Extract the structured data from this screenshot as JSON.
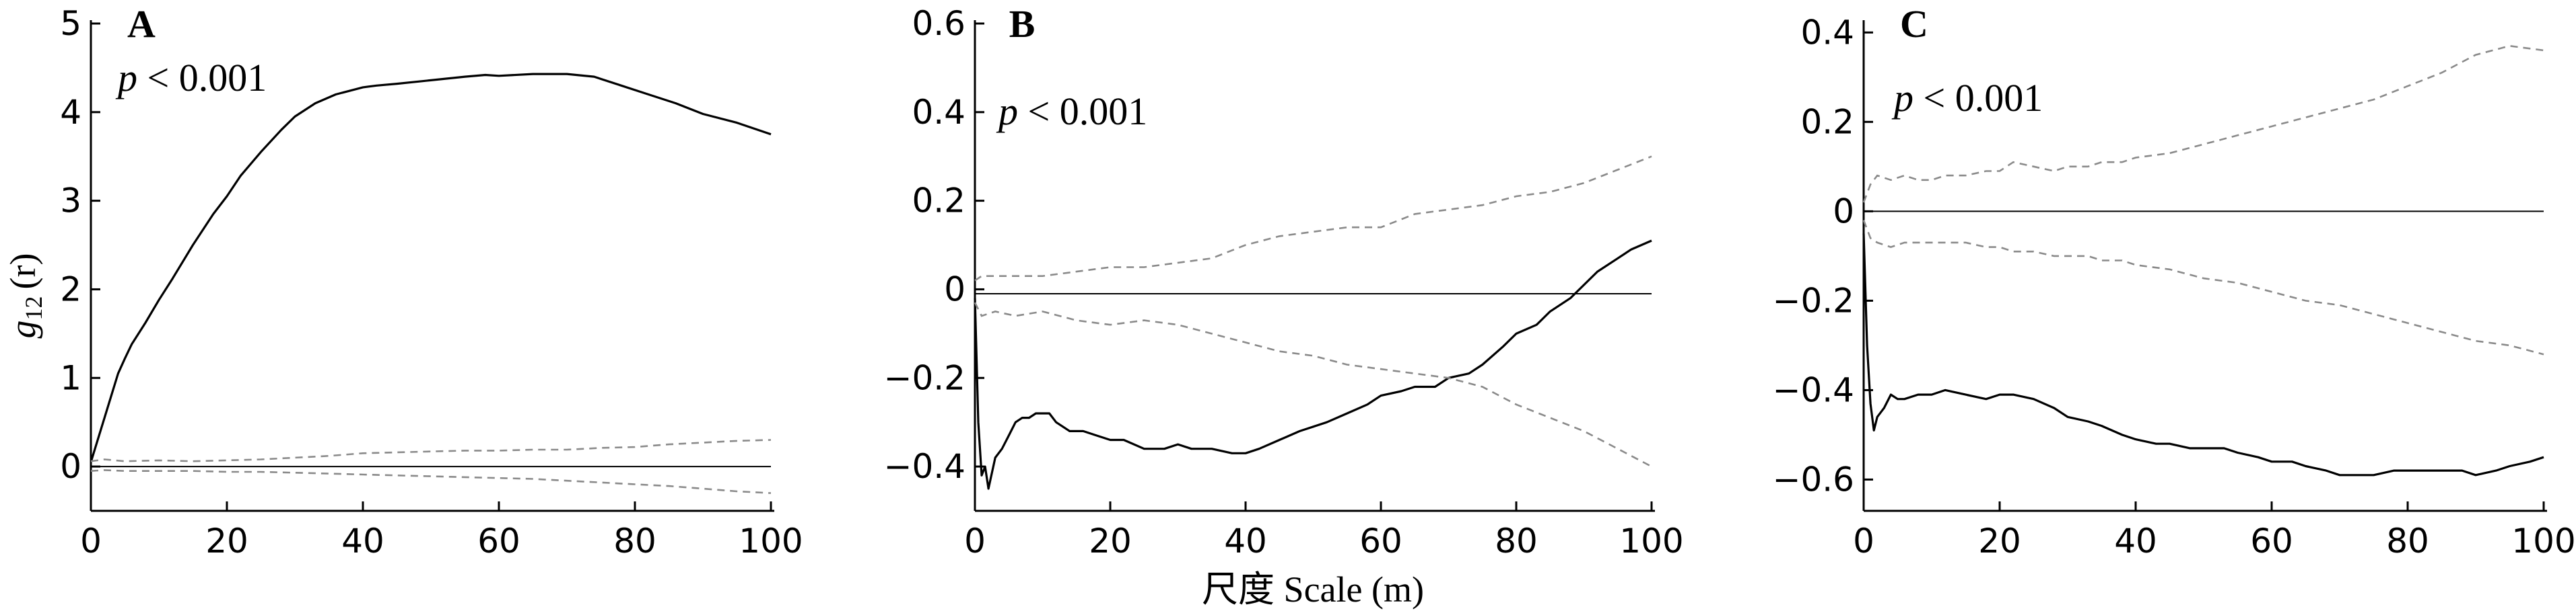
{
  "figure": {
    "ylabel_main": "g",
    "ylabel_sub": "12",
    "ylabel_rest": "(r)",
    "xlabel": "尺度 Scale (m)"
  },
  "chart_data": [
    {
      "type": "line",
      "panel": "A",
      "annotation": "p < 0.001",
      "xlim": [
        0,
        100
      ],
      "ylim": [
        -0.5,
        5
      ],
      "xticks": [
        0,
        20,
        40,
        60,
        80,
        100
      ],
      "yticks": [
        0,
        1,
        2,
        3,
        4,
        5
      ],
      "reference_line": 0,
      "series": [
        {
          "role": "observed",
          "x": [
            0,
            1,
            2,
            3,
            4,
            5,
            6,
            8,
            10,
            12,
            15,
            18,
            20,
            22,
            25,
            28,
            30,
            33,
            36,
            40,
            42,
            45,
            50,
            55,
            58,
            60,
            65,
            70,
            74,
            78,
            82,
            86,
            90,
            95,
            100
          ],
          "y": [
            0.05,
            0.3,
            0.55,
            0.8,
            1.05,
            1.22,
            1.38,
            1.62,
            1.88,
            2.12,
            2.5,
            2.85,
            3.05,
            3.28,
            3.55,
            3.8,
            3.95,
            4.1,
            4.2,
            4.28,
            4.3,
            4.32,
            4.36,
            4.4,
            4.42,
            4.41,
            4.43,
            4.43,
            4.4,
            4.3,
            4.2,
            4.1,
            3.98,
            3.88,
            3.75
          ]
        },
        {
          "role": "envelope-upper",
          "x": [
            0,
            2,
            5,
            10,
            15,
            20,
            25,
            30,
            35,
            40,
            45,
            50,
            55,
            60,
            65,
            70,
            75,
            80,
            85,
            90,
            95,
            100
          ],
          "y": [
            0.06,
            0.08,
            0.06,
            0.07,
            0.06,
            0.07,
            0.08,
            0.1,
            0.12,
            0.15,
            0.16,
            0.17,
            0.18,
            0.18,
            0.19,
            0.19,
            0.21,
            0.22,
            0.25,
            0.27,
            0.29,
            0.3
          ]
        },
        {
          "role": "envelope-lower",
          "x": [
            0,
            2,
            5,
            10,
            15,
            20,
            25,
            30,
            35,
            40,
            45,
            50,
            55,
            60,
            65,
            70,
            75,
            80,
            85,
            90,
            95,
            100
          ],
          "y": [
            -0.05,
            -0.04,
            -0.05,
            -0.05,
            -0.05,
            -0.06,
            -0.06,
            -0.07,
            -0.08,
            -0.09,
            -0.1,
            -0.11,
            -0.12,
            -0.13,
            -0.14,
            -0.16,
            -0.18,
            -0.2,
            -0.22,
            -0.25,
            -0.28,
            -0.3
          ]
        }
      ]
    },
    {
      "type": "line",
      "panel": "B",
      "annotation": "p < 0.001",
      "xlim": [
        0,
        100
      ],
      "ylim": [
        -0.5,
        0.6
      ],
      "xticks": [
        0,
        20,
        40,
        60,
        80,
        100
      ],
      "yticks": [
        -0.4,
        -0.2,
        0,
        0.2,
        0.4,
        0.6
      ],
      "ytick_labels": [
        "−0.4",
        "−0.2",
        "0",
        "0.2",
        "0.4",
        "0.6"
      ],
      "reference_line": -0.01,
      "series": [
        {
          "role": "observed",
          "x": [
            0,
            0.5,
            1,
            1.5,
            2,
            3,
            4,
            5,
            6,
            7,
            8,
            9,
            10,
            11,
            12,
            14,
            16,
            18,
            20,
            22,
            25,
            28,
            30,
            32,
            35,
            38,
            40,
            42,
            45,
            48,
            50,
            52,
            55,
            58,
            60,
            63,
            65,
            68,
            70,
            73,
            75,
            78,
            80,
            83,
            85,
            88,
            90,
            92,
            95,
            97,
            100
          ],
          "y": [
            -0.02,
            -0.3,
            -0.42,
            -0.4,
            -0.45,
            -0.38,
            -0.36,
            -0.33,
            -0.3,
            -0.29,
            -0.29,
            -0.28,
            -0.28,
            -0.28,
            -0.3,
            -0.32,
            -0.32,
            -0.33,
            -0.34,
            -0.34,
            -0.36,
            -0.36,
            -0.35,
            -0.36,
            -0.36,
            -0.37,
            -0.37,
            -0.36,
            -0.34,
            -0.32,
            -0.31,
            -0.3,
            -0.28,
            -0.26,
            -0.24,
            -0.23,
            -0.22,
            -0.22,
            -0.2,
            -0.19,
            -0.17,
            -0.13,
            -0.1,
            -0.08,
            -0.05,
            -0.02,
            0.01,
            0.04,
            0.07,
            0.09,
            0.11
          ]
        },
        {
          "role": "envelope-upper",
          "x": [
            0,
            1,
            3,
            6,
            10,
            15,
            20,
            25,
            30,
            35,
            40,
            45,
            50,
            55,
            60,
            65,
            70,
            75,
            80,
            85,
            90,
            95,
            100
          ],
          "y": [
            0.02,
            0.03,
            0.03,
            0.03,
            0.03,
            0.04,
            0.05,
            0.05,
            0.06,
            0.07,
            0.1,
            0.12,
            0.13,
            0.14,
            0.14,
            0.17,
            0.18,
            0.19,
            0.21,
            0.22,
            0.24,
            0.27,
            0.3
          ]
        },
        {
          "role": "envelope-lower",
          "x": [
            0,
            1,
            3,
            6,
            10,
            15,
            20,
            25,
            30,
            35,
            40,
            45,
            50,
            55,
            60,
            65,
            70,
            75,
            80,
            85,
            90,
            95,
            100
          ],
          "y": [
            -0.03,
            -0.06,
            -0.05,
            -0.06,
            -0.05,
            -0.07,
            -0.08,
            -0.07,
            -0.08,
            -0.1,
            -0.12,
            -0.14,
            -0.15,
            -0.17,
            -0.18,
            -0.19,
            -0.2,
            -0.22,
            -0.26,
            -0.29,
            -0.32,
            -0.36,
            -0.4
          ]
        }
      ]
    },
    {
      "type": "line",
      "panel": "C",
      "annotation": "p < 0.001",
      "xlim": [
        0,
        100
      ],
      "ylim": [
        -0.67,
        0.42
      ],
      "xticks": [
        0,
        20,
        40,
        60,
        80,
        100
      ],
      "yticks": [
        -0.6,
        -0.4,
        -0.2,
        0,
        0.2,
        0.4
      ],
      "ytick_labels": [
        "−0.6",
        "−0.4",
        "−0.2",
        "0",
        "0.2",
        "0.4"
      ],
      "reference_line": 0,
      "series": [
        {
          "role": "observed",
          "x": [
            0,
            0.5,
            1,
            1.5,
            2,
            3,
            4,
            5,
            6,
            8,
            10,
            12,
            15,
            18,
            20,
            22,
            25,
            28,
            30,
            33,
            35,
            38,
            40,
            43,
            45,
            48,
            50,
            53,
            55,
            58,
            60,
            63,
            65,
            68,
            70,
            73,
            75,
            78,
            80,
            83,
            85,
            88,
            90,
            93,
            95,
            98,
            100
          ],
          "y": [
            -0.05,
            -0.3,
            -0.43,
            -0.49,
            -0.46,
            -0.44,
            -0.41,
            -0.42,
            -0.42,
            -0.41,
            -0.41,
            -0.4,
            -0.41,
            -0.42,
            -0.41,
            -0.41,
            -0.42,
            -0.44,
            -0.46,
            -0.47,
            -0.48,
            -0.5,
            -0.51,
            -0.52,
            -0.52,
            -0.53,
            -0.53,
            -0.53,
            -0.54,
            -0.55,
            -0.56,
            -0.56,
            -0.57,
            -0.58,
            -0.59,
            -0.59,
            -0.59,
            -0.58,
            -0.58,
            -0.58,
            -0.58,
            -0.58,
            -0.59,
            -0.58,
            -0.57,
            -0.56,
            -0.55
          ]
        },
        {
          "role": "envelope-upper",
          "x": [
            0,
            1,
            2,
            4,
            6,
            8,
            10,
            12,
            15,
            18,
            20,
            22,
            25,
            28,
            30,
            33,
            35,
            38,
            40,
            45,
            50,
            55,
            60,
            65,
            70,
            75,
            80,
            85,
            90,
            95,
            100
          ],
          "y": [
            0.02,
            0.06,
            0.08,
            0.07,
            0.08,
            0.07,
            0.07,
            0.08,
            0.08,
            0.09,
            0.09,
            0.11,
            0.1,
            0.09,
            0.1,
            0.1,
            0.11,
            0.11,
            0.12,
            0.13,
            0.15,
            0.17,
            0.19,
            0.21,
            0.23,
            0.25,
            0.28,
            0.31,
            0.35,
            0.37,
            0.36
          ]
        },
        {
          "role": "envelope-lower",
          "x": [
            0,
            1,
            2,
            4,
            6,
            8,
            10,
            12,
            15,
            18,
            20,
            22,
            25,
            28,
            30,
            33,
            35,
            38,
            40,
            45,
            50,
            55,
            60,
            65,
            70,
            75,
            80,
            85,
            90,
            95,
            100
          ],
          "y": [
            -0.02,
            -0.06,
            -0.07,
            -0.08,
            -0.07,
            -0.07,
            -0.07,
            -0.07,
            -0.07,
            -0.08,
            -0.08,
            -0.09,
            -0.09,
            -0.1,
            -0.1,
            -0.1,
            -0.11,
            -0.11,
            -0.12,
            -0.13,
            -0.15,
            -0.16,
            -0.18,
            -0.2,
            -0.21,
            -0.23,
            -0.25,
            -0.27,
            -0.29,
            -0.3,
            -0.32
          ]
        }
      ]
    }
  ]
}
